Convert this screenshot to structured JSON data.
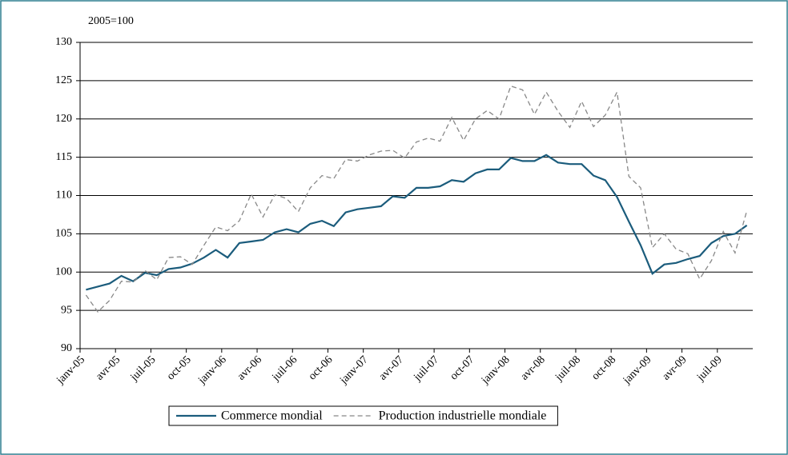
{
  "chart_data": {
    "type": "line",
    "y_label": "2005=100",
    "categories": [
      "janv-05",
      null,
      null,
      "avr-05",
      null,
      null,
      "juil-05",
      null,
      null,
      "oct-05",
      null,
      null,
      "janv-06",
      null,
      null,
      "avr-06",
      null,
      null,
      "juil-06",
      null,
      null,
      "oct-06",
      null,
      null,
      "janv-07",
      null,
      null,
      "avr-07",
      null,
      null,
      "juil-07",
      null,
      null,
      "oct-07",
      null,
      null,
      "janv-08",
      null,
      null,
      "avr-08",
      null,
      null,
      "juil-08",
      null,
      null,
      "oct-08",
      null,
      null,
      "janv-09",
      null,
      null,
      "avr-09",
      null,
      null,
      "juil-09",
      null,
      null
    ],
    "series": [
      {
        "name": "Commerce mondial",
        "color": "#1b5c7c",
        "dash": false,
        "values": [
          97.7,
          98.1,
          98.5,
          99.5,
          98.8,
          99.9,
          99.6,
          100.4,
          100.6,
          101.1,
          101.9,
          102.9,
          101.9,
          103.8,
          104.0,
          104.2,
          105.2,
          105.6,
          105.2,
          106.3,
          106.7,
          106.0,
          107.8,
          108.2,
          108.4,
          108.6,
          109.9,
          109.7,
          111.0,
          111.0,
          111.2,
          112.0,
          111.8,
          112.9,
          113.4,
          113.4,
          114.9,
          114.5,
          114.5,
          115.3,
          114.3,
          114.1,
          114.1,
          112.6,
          112.0,
          109.8,
          106.6,
          103.5,
          99.8,
          101.0,
          101.2,
          101.7,
          102.1,
          103.8,
          104.7,
          105.0,
          106.1
        ]
      },
      {
        "name": "Production industrielle mondiale",
        "color": "#888888",
        "dash": true,
        "values": [
          97.0,
          94.8,
          96.3,
          98.8,
          98.7,
          100.2,
          99.0,
          101.9,
          102.0,
          101.0,
          103.5,
          105.9,
          105.4,
          106.7,
          110.2,
          107.2,
          110.1,
          109.6,
          107.9,
          111.0,
          112.6,
          112.2,
          114.7,
          114.5,
          115.3,
          115.8,
          115.9,
          114.9,
          117.0,
          117.5,
          117.1,
          120.2,
          117.2,
          120.0,
          121.1,
          120.0,
          124.3,
          123.8,
          120.6,
          123.5,
          121.0,
          118.9,
          122.3,
          119.0,
          120.5,
          123.5,
          112.5,
          111.0,
          103.2,
          105.0,
          103.0,
          102.4,
          99.1,
          101.5,
          105.3,
          102.5,
          108.0
        ]
      }
    ],
    "ylim": [
      90,
      130
    ],
    "yticks": [
      90,
      95,
      100,
      105,
      110,
      115,
      120,
      125,
      130
    ],
    "grid": true,
    "legend": "bottom"
  }
}
